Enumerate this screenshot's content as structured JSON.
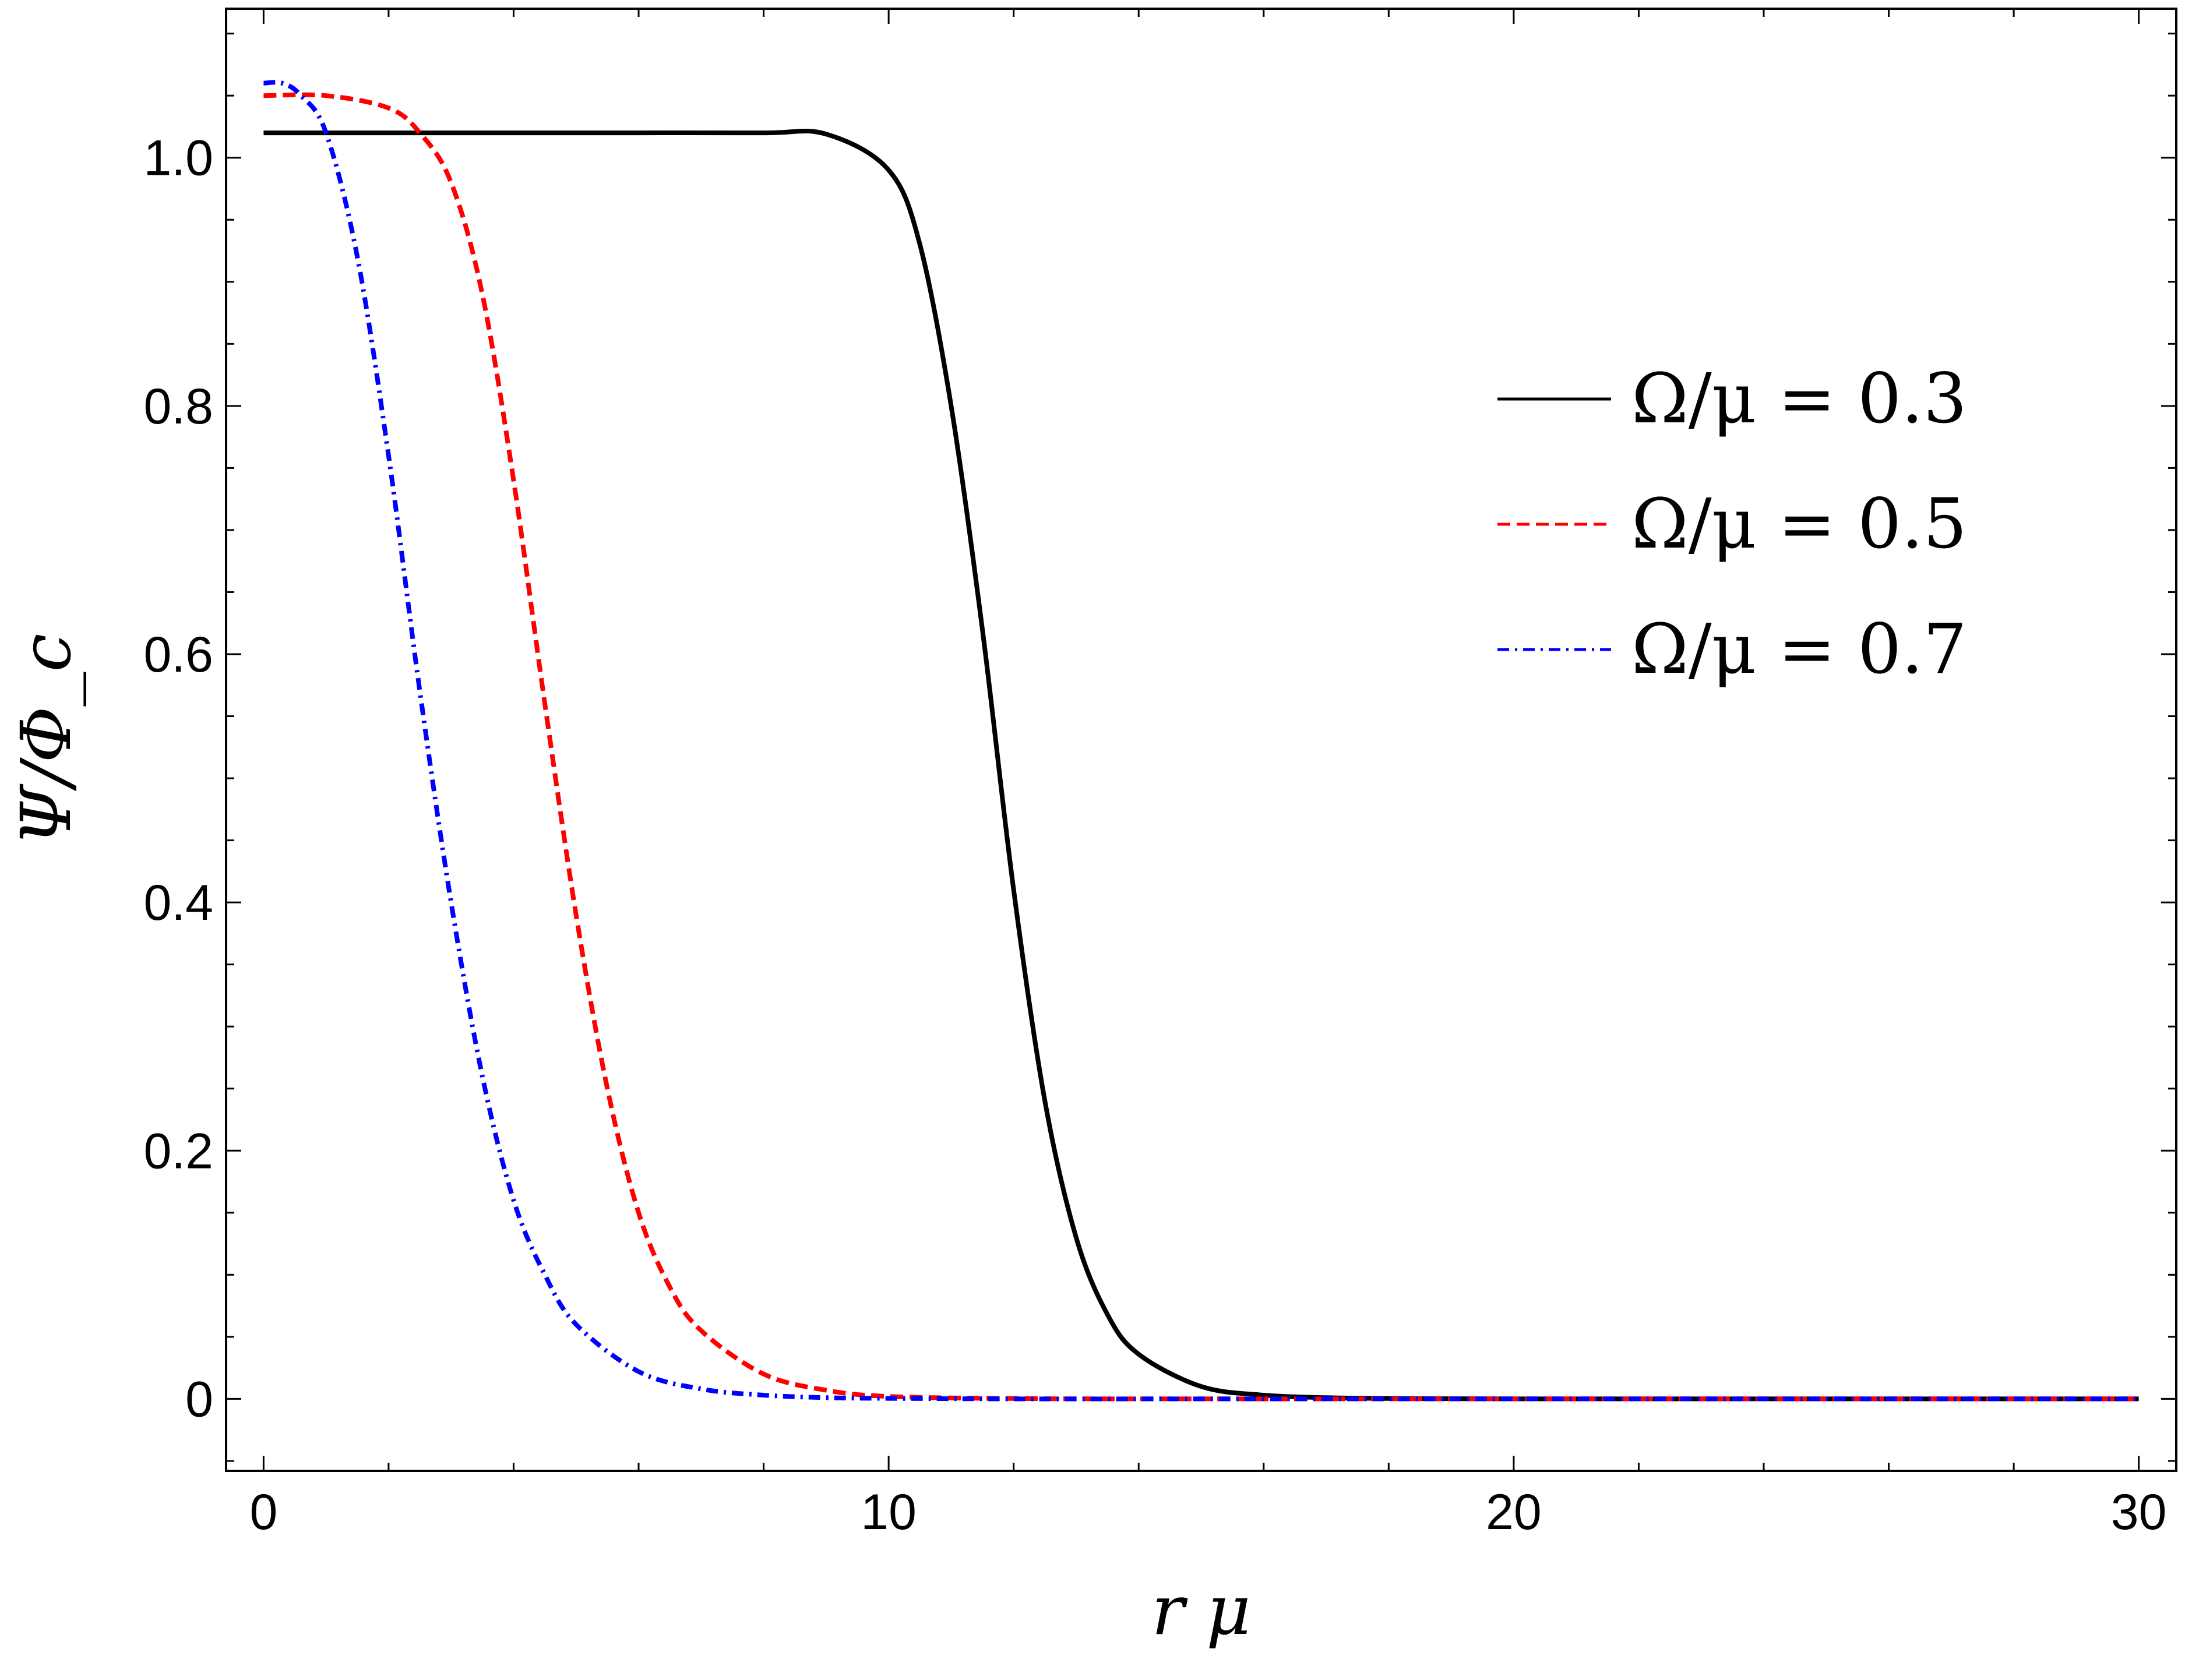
{
  "chart_data": {
    "type": "line",
    "title": "",
    "xlabel": "r μ",
    "ylabel": "Ψ/Φ_c",
    "xlim": [
      -0.6,
      30.6
    ],
    "ylim": [
      -0.058,
      1.12
    ],
    "x_ticks": [
      0,
      10,
      20,
      30
    ],
    "x_tick_labels": [
      "0",
      "10",
      "20",
      "30"
    ],
    "x_minor_step": 2,
    "y_ticks": [
      0,
      0.2,
      0.4,
      0.6,
      0.8,
      1.0
    ],
    "y_tick_labels": [
      "0",
      "0.2",
      "0.4",
      "0.6",
      "0.8",
      "1.0"
    ],
    "y_minor_step": 0.05,
    "grid": false,
    "frame": true,
    "legend_position": "right",
    "series": [
      {
        "name": "Ω/μ = 0.3",
        "color": "#000000",
        "style": "solid",
        "x": [
          0,
          2,
          4,
          6,
          8,
          9,
          10,
          10.5,
          11,
          11.5,
          12,
          12.5,
          13,
          13.5,
          14,
          15,
          16,
          17,
          18,
          20,
          25,
          30
        ],
        "y": [
          1.02,
          1.02,
          1.02,
          1.02,
          1.02,
          1.019,
          0.99,
          0.93,
          0.8,
          0.62,
          0.41,
          0.24,
          0.13,
          0.068,
          0.036,
          0.01,
          0.003,
          0.001,
          0.0003,
          0,
          0,
          0
        ]
      },
      {
        "name": "Ω/μ = 0.5",
        "color": "#ff0000",
        "style": "dashed",
        "x": [
          0,
          1,
          2,
          2.5,
          3,
          3.5,
          4,
          4.5,
          5,
          5.5,
          6,
          6.5,
          7,
          8,
          9,
          10,
          12,
          15,
          20,
          30
        ],
        "y": [
          1.05,
          1.05,
          1.04,
          1.02,
          0.98,
          0.89,
          0.74,
          0.56,
          0.39,
          0.25,
          0.15,
          0.09,
          0.055,
          0.02,
          0.007,
          0.002,
          0.0003,
          0,
          0,
          0
        ]
      },
      {
        "name": "Ω/μ = 0.7",
        "color": "#0000ff",
        "style": "dashdot",
        "x": [
          0,
          0.3,
          0.6,
          1,
          1.5,
          2,
          2.5,
          3,
          3.5,
          4,
          4.5,
          5,
          6,
          7,
          8,
          9,
          10,
          12,
          15,
          20,
          30
        ],
        "y": [
          1.06,
          1.06,
          1.05,
          1.02,
          0.92,
          0.76,
          0.57,
          0.4,
          0.26,
          0.16,
          0.1,
          0.06,
          0.022,
          0.008,
          0.003,
          0.001,
          0.0004,
          0,
          0,
          0,
          0
        ]
      }
    ]
  }
}
